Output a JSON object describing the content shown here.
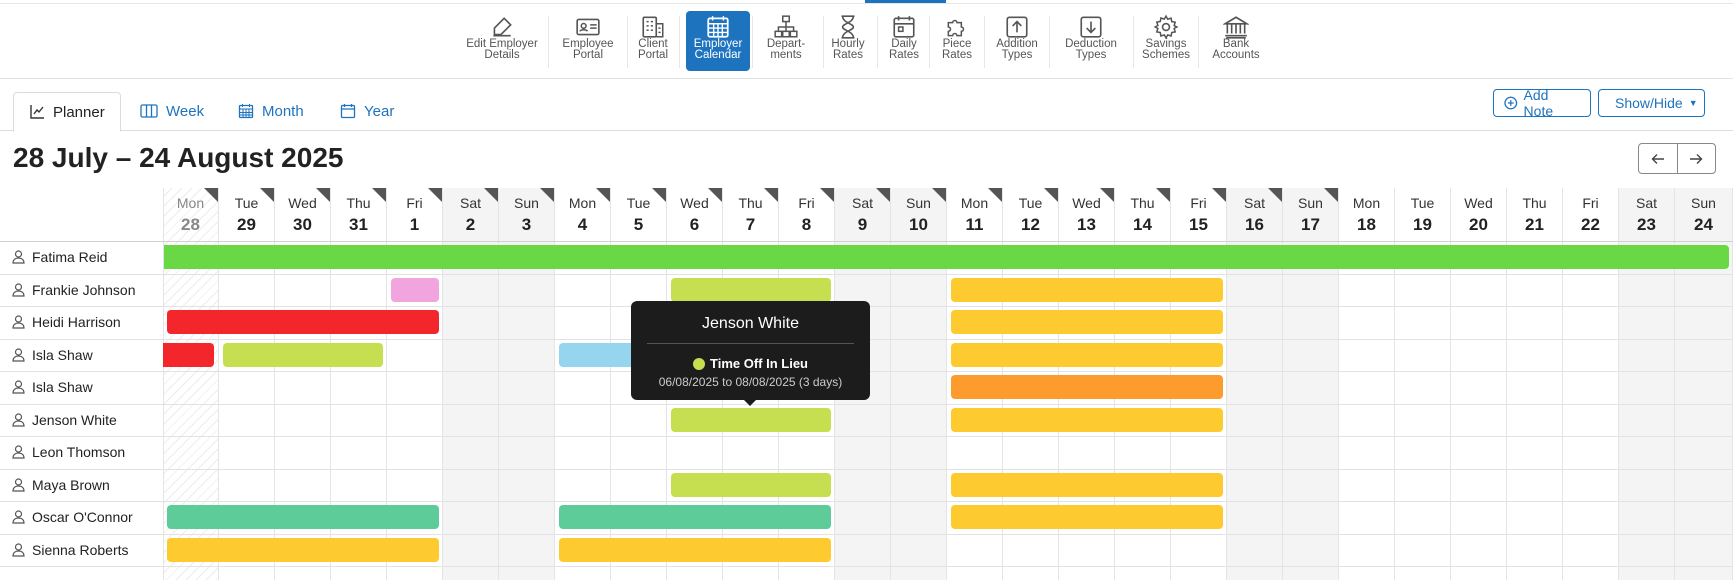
{
  "toolbar": {
    "items": [
      {
        "label": "Edit Employer Details",
        "l1": "Edit Employer",
        "l2": "Details",
        "icon": "edit-icon"
      },
      {
        "label": "Employee Portal",
        "l1": "Employee",
        "l2": "Portal",
        "icon": "id-card-icon"
      },
      {
        "label": "Client Portal",
        "l1": "Client",
        "l2": "Portal",
        "icon": "building-icon"
      },
      {
        "label": "Employer Calendar",
        "l1": "Employer",
        "l2": "Calendar",
        "icon": "calendar-icon"
      },
      {
        "label": "Depart-ments",
        "l1": "Depart-",
        "l2": "ments",
        "icon": "org-chart-icon"
      },
      {
        "label": "Hourly Rates",
        "l1": "Hourly",
        "l2": "Rates",
        "icon": "hourglass-icon"
      },
      {
        "label": "Daily Rates",
        "l1": "Daily",
        "l2": "Rates",
        "icon": "calendar-day-icon"
      },
      {
        "label": "Piece Rates",
        "l1": "Piece",
        "l2": "Rates",
        "icon": "puzzle-icon"
      },
      {
        "label": "Addition Types",
        "l1": "Addition",
        "l2": "Types",
        "icon": "upload-icon"
      },
      {
        "label": "Deduction Types",
        "l1": "Deduction",
        "l2": "Types",
        "icon": "download-icon"
      },
      {
        "label": "Savings Schemes",
        "l1": "Savings",
        "l2": "Schemes",
        "icon": "gear-icon"
      },
      {
        "label": "Bank Accounts",
        "l1": "Bank",
        "l2": "Accounts",
        "icon": "bank-icon"
      }
    ],
    "active": "Employer Calendar"
  },
  "tabs": [
    {
      "label": "Planner",
      "icon": "chart-icon",
      "active": true
    },
    {
      "label": "Week",
      "icon": "columns-icon",
      "active": false
    },
    {
      "label": "Month",
      "icon": "calendar-grid-icon",
      "active": false
    },
    {
      "label": "Year",
      "icon": "calendar-year-icon",
      "active": false
    }
  ],
  "actions": {
    "add_note": "Add Note",
    "show_hide": "Show/Hide"
  },
  "title": "28 July – 24 August 2025",
  "days": [
    {
      "name": "Mon",
      "date": "28",
      "weekend": false,
      "today": true
    },
    {
      "name": "Tue",
      "date": "29",
      "weekend": false
    },
    {
      "name": "Wed",
      "date": "30",
      "weekend": false
    },
    {
      "name": "Thu",
      "date": "31",
      "weekend": false
    },
    {
      "name": "Fri",
      "date": "1",
      "weekend": false
    },
    {
      "name": "Sat",
      "date": "2",
      "weekend": true
    },
    {
      "name": "Sun",
      "date": "3",
      "weekend": true
    },
    {
      "name": "Mon",
      "date": "4",
      "weekend": false
    },
    {
      "name": "Tue",
      "date": "5",
      "weekend": false
    },
    {
      "name": "Wed",
      "date": "6",
      "weekend": false
    },
    {
      "name": "Thu",
      "date": "7",
      "weekend": false
    },
    {
      "name": "Fri",
      "date": "8",
      "weekend": false
    },
    {
      "name": "Sat",
      "date": "9",
      "weekend": true
    },
    {
      "name": "Sun",
      "date": "10",
      "weekend": true
    },
    {
      "name": "Mon",
      "date": "11",
      "weekend": false
    },
    {
      "name": "Tue",
      "date": "12",
      "weekend": false
    },
    {
      "name": "Wed",
      "date": "13",
      "weekend": false
    },
    {
      "name": "Thu",
      "date": "14",
      "weekend": false
    },
    {
      "name": "Fri",
      "date": "15",
      "weekend": false
    },
    {
      "name": "Sat",
      "date": "16",
      "weekend": true
    },
    {
      "name": "Sun",
      "date": "17",
      "weekend": true
    },
    {
      "name": "Mon",
      "date": "18",
      "weekend": false
    },
    {
      "name": "Tue",
      "date": "19",
      "weekend": false
    },
    {
      "name": "Wed",
      "date": "20",
      "weekend": false
    },
    {
      "name": "Thu",
      "date": "21",
      "weekend": false
    },
    {
      "name": "Fri",
      "date": "22",
      "weekend": false
    },
    {
      "name": "Sat",
      "date": "23",
      "weekend": true
    },
    {
      "name": "Sun",
      "date": "24",
      "weekend": true
    }
  ],
  "flagged_days": [
    "28",
    "29",
    "30",
    "31",
    "1",
    "2",
    "3",
    "4",
    "5",
    "6",
    "7",
    "8",
    "9",
    "10",
    "11",
    "12",
    "13",
    "14",
    "15",
    "16",
    "17"
  ],
  "colors": {
    "green": "#6ad744",
    "pink": "#f2a4de",
    "red": "#f2262b",
    "lime": "#c5df50",
    "blue": "#95d5ee",
    "yellow": "#fdcb30",
    "orange": "#fd9b2c",
    "teal": "#5ecc99",
    "accent": "#1e73be"
  },
  "employees": [
    {
      "name": "Fatima Reid",
      "bars": [
        {
          "start": 0,
          "days": 28,
          "color": "green"
        }
      ]
    },
    {
      "name": "Frankie Johnson",
      "bars": [
        {
          "start": 4,
          "days": 1,
          "color": "pink"
        },
        {
          "start": 9,
          "days": 3,
          "color": "lime"
        },
        {
          "start": 14,
          "days": 5,
          "color": "yellow"
        }
      ]
    },
    {
      "name": "Heidi Harrison",
      "bars": [
        {
          "start": 0,
          "days": 5,
          "color": "red"
        },
        {
          "start": 9,
          "days": 3,
          "color": "lime"
        },
        {
          "start": 14,
          "days": 5,
          "color": "yellow"
        }
      ]
    },
    {
      "name": "Isla Shaw",
      "bars": [
        {
          "start": 0,
          "days": 1,
          "color": "red"
        },
        {
          "start": 1,
          "days": 3,
          "color": "lime"
        },
        {
          "start": 7,
          "days": 2,
          "color": "blue"
        },
        {
          "start": 9,
          "days": 3,
          "color": "lime"
        },
        {
          "start": 14,
          "days": 5,
          "color": "yellow"
        }
      ]
    },
    {
      "name": "Isla Shaw",
      "bars": [
        {
          "start": 14,
          "days": 5,
          "color": "orange"
        }
      ]
    },
    {
      "name": "Jenson White",
      "bars": [
        {
          "start": 9,
          "days": 3,
          "color": "lime"
        },
        {
          "start": 14,
          "days": 5,
          "color": "yellow"
        }
      ]
    },
    {
      "name": "Leon Thomson",
      "bars": []
    },
    {
      "name": "Maya Brown",
      "bars": [
        {
          "start": 9,
          "days": 3,
          "color": "lime"
        },
        {
          "start": 14,
          "days": 5,
          "color": "yellow"
        }
      ]
    },
    {
      "name": "Oscar O'Connor",
      "bars": [
        {
          "start": 0,
          "days": 5,
          "color": "teal"
        },
        {
          "start": 7,
          "days": 5,
          "color": "teal"
        },
        {
          "start": 14,
          "days": 5,
          "color": "yellow"
        }
      ]
    },
    {
      "name": "Sienna Roberts",
      "bars": [
        {
          "start": 0,
          "days": 5,
          "color": "yellow"
        },
        {
          "start": 7,
          "days": 5,
          "color": "yellow"
        }
      ]
    }
  ],
  "tooltip": {
    "name": "Jenson White",
    "type": "Time Off In Lieu",
    "dates": "06/08/2025 to 08/08/2025 (3 days)",
    "color": "#c5df50"
  }
}
